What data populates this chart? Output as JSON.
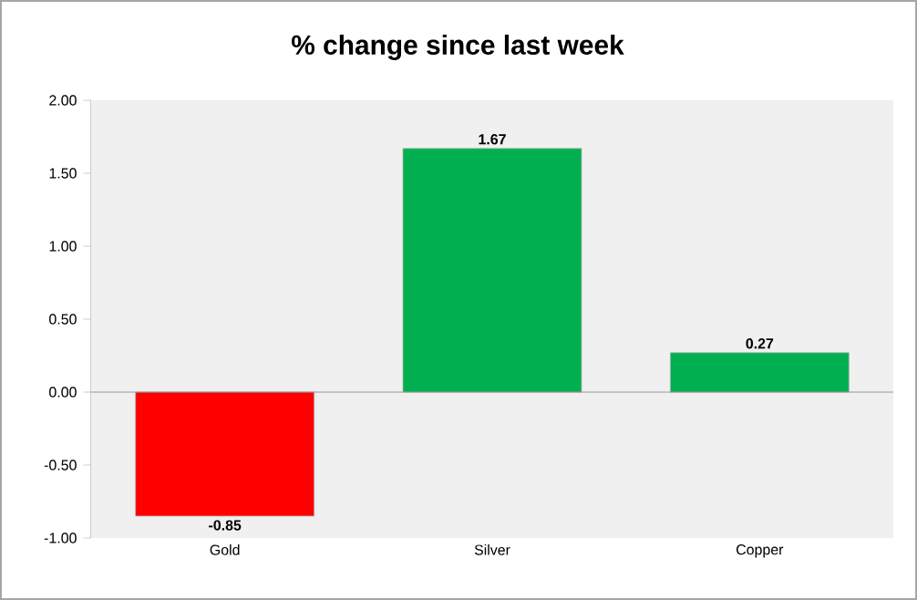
{
  "chart_data": {
    "type": "bar",
    "title": "% change since last week",
    "categories": [
      "Gold",
      "Silver",
      "Copper"
    ],
    "values": [
      -0.85,
      1.67,
      0.27
    ],
    "colors": [
      "#ff0000",
      "#00b050",
      "#00b050"
    ],
    "ylim": [
      -1,
      2
    ],
    "yticks": [
      {
        "value": -1,
        "label": "-1.00"
      },
      {
        "value": -0.5,
        "label": "-0.50"
      },
      {
        "value": 0,
        "label": "0.00"
      },
      {
        "value": 0.5,
        "label": "0.50"
      },
      {
        "value": 1,
        "label": "1.00"
      },
      {
        "value": 1.5,
        "label": "1.50"
      },
      {
        "value": 2,
        "label": "2.00"
      }
    ],
    "data_labels": true
  }
}
